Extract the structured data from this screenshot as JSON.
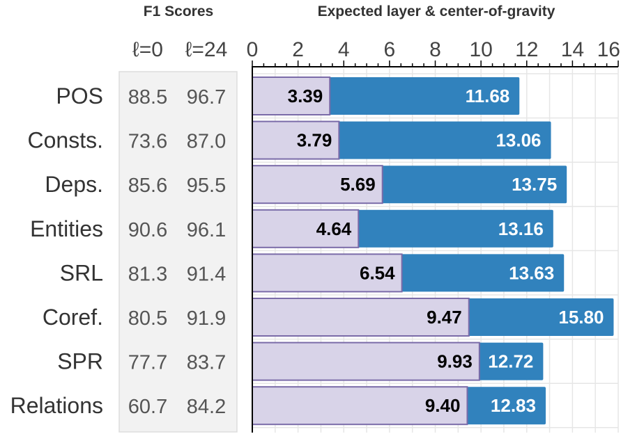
{
  "chart_data": {
    "type": "bar",
    "panels": [
      {
        "title": "F1 Scores",
        "column_headers": [
          "ℓ=0",
          "ℓ=24"
        ]
      },
      {
        "title": "Expected layer & center-of-gravity",
        "xlim": [
          0,
          16
        ],
        "xticks": [
          "0",
          "2",
          "4",
          "6",
          "8",
          "10",
          "12",
          "14",
          "16"
        ],
        "grid": true
      }
    ],
    "categories": [
      "POS",
      "Consts.",
      "Deps.",
      "Entities",
      "SRL",
      "Coref.",
      "SPR",
      "Relations"
    ],
    "f1_l0": [
      "88.5",
      "73.6",
      "85.6",
      "90.6",
      "81.3",
      "80.5",
      "77.7",
      "60.7"
    ],
    "f1_l24": [
      "96.7",
      "87.0",
      "95.5",
      "96.1",
      "91.4",
      "91.9",
      "83.7",
      "84.2"
    ],
    "series": [
      {
        "values": [
          3.39,
          3.79,
          5.69,
          4.64,
          6.54,
          9.47,
          9.93,
          9.4
        ],
        "labels": [
          "3.39",
          "3.79",
          "5.69",
          "4.64",
          "6.54",
          "9.47",
          "9.93",
          "9.40"
        ],
        "color": "#d8d3e8"
      },
      {
        "values": [
          11.68,
          13.06,
          13.75,
          13.16,
          13.63,
          15.8,
          12.72,
          12.83
        ],
        "labels": [
          "11.68",
          "13.06",
          "13.75",
          "13.16",
          "13.63",
          "15.80",
          "12.72",
          "12.83"
        ],
        "color": "#3182bd"
      }
    ]
  }
}
